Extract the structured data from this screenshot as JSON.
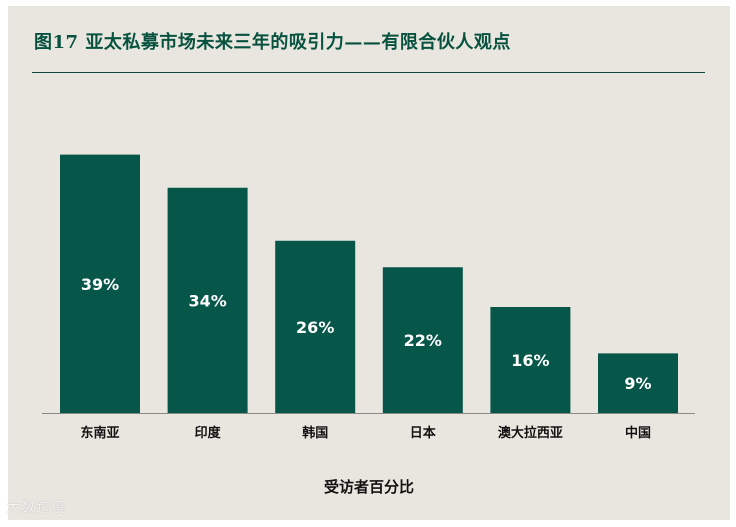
{
  "title": "图17 亚太私募市场未来三年的吸引力——有限合伙人观点",
  "chart_data": {
    "type": "bar",
    "title": "图17 亚太私募市场未来三年的吸引力——有限合伙人观点",
    "xlabel": "受访者百分比",
    "ylabel": "",
    "categories": [
      "东南亚",
      "印度",
      "韩国",
      "日本",
      "澳大拉西亚",
      "中国"
    ],
    "values": [
      39,
      34,
      26,
      22,
      16,
      9
    ],
    "value_labels": [
      "39%",
      "34%",
      "26%",
      "22%",
      "16%",
      "9%"
    ],
    "ylim": [
      0,
      40
    ],
    "grid": false,
    "legend": "none",
    "bar_color": "#07564a",
    "label_color": "#ffffff"
  },
  "watermark": "大数跨境"
}
